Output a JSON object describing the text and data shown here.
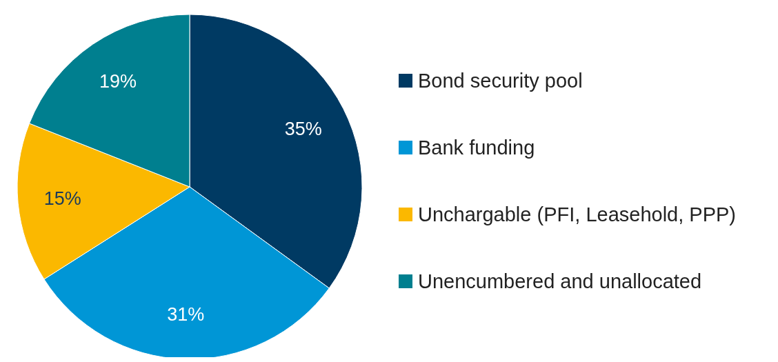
{
  "chart_data": {
    "type": "pie",
    "categories": [
      "Bond security pool",
      "Bank funding",
      "Unchargable (PFI, Leasehold, PPP)",
      "Unencumbered and unallocated"
    ],
    "values": [
      35,
      31,
      15,
      19
    ],
    "colors": [
      "#003a63",
      "#0096d6",
      "#fbb800",
      "#007f8f"
    ],
    "value_labels": [
      "35%",
      "31%",
      "15%",
      "19%"
    ],
    "legend": "right"
  }
}
